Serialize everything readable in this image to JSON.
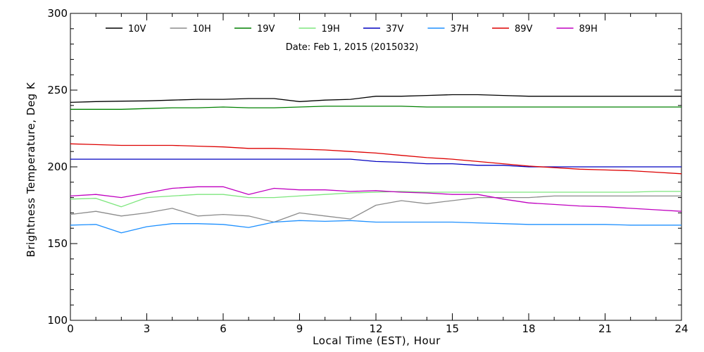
{
  "chart_data": {
    "type": "line",
    "title": "",
    "annotation": "Date: Feb  1, 2015 (2015032)",
    "xlabel": "Local Time (EST), Hour",
    "ylabel": "Brightness Temperature, Deg K",
    "xlim": [
      0,
      24
    ],
    "ylim": [
      100,
      300
    ],
    "xticks": [
      0,
      3,
      6,
      9,
      12,
      15,
      18,
      21,
      24
    ],
    "yticks": [
      100,
      150,
      200,
      250,
      300
    ],
    "grid": false,
    "legend_placement": "top",
    "x": [
      0,
      1,
      2,
      3,
      4,
      5,
      6,
      7,
      8,
      9,
      10,
      11,
      12,
      13,
      14,
      15,
      16,
      17,
      18,
      19,
      20,
      21,
      22,
      23,
      24
    ],
    "series": [
      {
        "name": "10V",
        "color": "#000000",
        "values": [
          242,
          242.5,
          242.8,
          243,
          243.5,
          244,
          244,
          244.5,
          244.5,
          242.5,
          243.5,
          244,
          246,
          246,
          246.5,
          247,
          247,
          246.5,
          246,
          246,
          246,
          246,
          246,
          246,
          246
        ]
      },
      {
        "name": "10H",
        "color": "#8c8c8c",
        "values": [
          169,
          171,
          168,
          170,
          173,
          168,
          169,
          168,
          164,
          170,
          168,
          166,
          175,
          178,
          176,
          178,
          180,
          180,
          180,
          181,
          181,
          181,
          181,
          181,
          181
        ]
      },
      {
        "name": "19V",
        "color": "#008000",
        "values": [
          237.5,
          237.5,
          237.5,
          238,
          238.5,
          238.5,
          239,
          238.5,
          238.5,
          239,
          239.5,
          239.5,
          239.5,
          239.5,
          239,
          239,
          239,
          239,
          239,
          239,
          239,
          239,
          239,
          239,
          239
        ]
      },
      {
        "name": "19H",
        "color": "#7de67d",
        "values": [
          179,
          179.5,
          174,
          180,
          181,
          182,
          182,
          180,
          180,
          181,
          182,
          183,
          183.5,
          184,
          183.5,
          183.5,
          183.5,
          183.5,
          183.5,
          183.5,
          183.5,
          183.5,
          183.5,
          184,
          184
        ]
      },
      {
        "name": "37V",
        "color": "#0000c0",
        "values": [
          205,
          205,
          205,
          205,
          205,
          205,
          205,
          205,
          205,
          205,
          205,
          205,
          203.5,
          203,
          202,
          202,
          201,
          201,
          200,
          200,
          200,
          200,
          200,
          200,
          200
        ]
      },
      {
        "name": "37H",
        "color": "#1e90ff",
        "values": [
          162,
          162.5,
          157,
          161,
          163,
          163,
          162.5,
          160.5,
          164,
          165,
          164.5,
          165,
          164,
          164,
          164,
          164,
          163.5,
          163,
          162.5,
          162.5,
          162.5,
          162.5,
          162,
          162,
          162
        ]
      },
      {
        "name": "89V",
        "color": "#dd0000",
        "values": [
          215,
          214.5,
          214,
          214,
          214,
          213.5,
          213,
          212,
          212,
          211.5,
          211,
          210,
          209,
          207.5,
          206,
          205,
          203.5,
          202,
          200.5,
          199.5,
          198.5,
          198,
          197.5,
          196.5,
          195.5
        ]
      },
      {
        "name": "89H",
        "color": "#c000c0",
        "values": [
          181,
          182,
          180,
          183,
          186,
          187,
          187,
          182,
          186,
          185,
          185,
          184,
          184.5,
          183.5,
          183,
          182,
          182,
          179,
          176.5,
          175.5,
          174.5,
          174,
          173,
          172,
          171
        ]
      }
    ]
  }
}
